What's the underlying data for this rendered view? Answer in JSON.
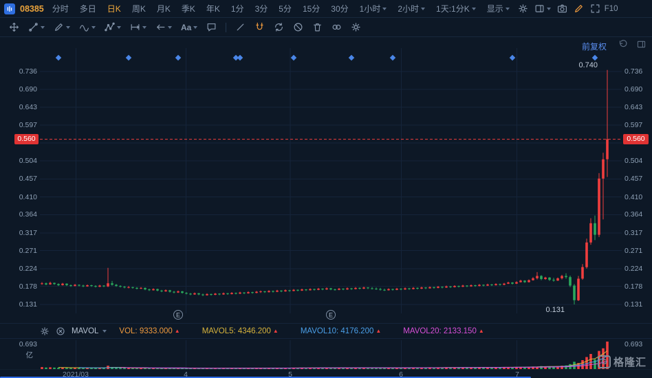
{
  "header": {
    "symbol": "08385",
    "selected": "日K",
    "f10": "F10",
    "menu": [
      {
        "label": "分时"
      },
      {
        "label": "多日"
      },
      {
        "label": "日K"
      },
      {
        "label": "周K"
      },
      {
        "label": "月K"
      },
      {
        "label": "季K"
      },
      {
        "label": "年K"
      },
      {
        "label": "1分"
      },
      {
        "label": "3分"
      },
      {
        "label": "5分"
      },
      {
        "label": "15分"
      },
      {
        "label": "30分"
      },
      {
        "label": "1小时",
        "caret": true
      },
      {
        "label": "2小时",
        "caret": true
      },
      {
        "label": "1天:1分K",
        "caret": true
      },
      {
        "label": "显示",
        "caret": true
      }
    ],
    "icons": [
      {
        "name": "chart-settings-icon",
        "icon": "gear"
      },
      {
        "name": "layout-select-icon",
        "icon": "layout",
        "caret": true
      },
      {
        "name": "screenshot-icon",
        "icon": "camera"
      },
      {
        "name": "annotate-pencil-icon",
        "icon": "pencil",
        "color": "#f09a3d"
      },
      {
        "name": "fullscreen-icon",
        "icon": "expand"
      }
    ]
  },
  "drawbar": {
    "tools": [
      {
        "name": "move-tool",
        "icon": "move"
      },
      {
        "name": "trendline-tool",
        "icon": "trend",
        "caret": true
      },
      {
        "name": "pen-tool",
        "icon": "pen",
        "caret": true
      },
      {
        "name": "wave-tool",
        "icon": "wave",
        "caret": true
      },
      {
        "name": "pattern-tool",
        "icon": "pattern",
        "caret": true
      },
      {
        "name": "measure-tool",
        "icon": "measure",
        "caret": true
      },
      {
        "name": "arrow-tool",
        "icon": "arrow",
        "caret": true
      },
      {
        "name": "text-tool",
        "icon": "text",
        "caret": true
      },
      {
        "name": "comment-tool",
        "icon": "comment"
      },
      {
        "name": "divider",
        "icon": "sep"
      },
      {
        "name": "ruler-tool",
        "icon": "slash"
      },
      {
        "name": "magnet-tool",
        "icon": "magnet",
        "color": "#f09a3d"
      },
      {
        "name": "sync-drawings-tool",
        "icon": "sync"
      },
      {
        "name": "hide-drawings-tool",
        "icon": "ban"
      },
      {
        "name": "delete-drawings-tool",
        "icon": "trash"
      },
      {
        "name": "link-tool",
        "icon": "rings"
      },
      {
        "name": "drawbar-settings",
        "icon": "gear"
      }
    ]
  },
  "chart": {
    "adjust_label": "前复权",
    "current_price": "0.560",
    "high_annotation": "0.740",
    "low_annotation": "0.131",
    "colors": {
      "up": "#f03e3e",
      "down": "#2aa85c",
      "diamond": "#4a86e8",
      "grid": "#15243a",
      "axis_text": "#8ea0b5",
      "annotation": "#c2cddb"
    }
  },
  "indicator": {
    "name": "MAVOL",
    "items": [
      {
        "label": "VOL: 9333.000",
        "color": "#f09a3d"
      },
      {
        "label": "MAVOL5: 4346.200",
        "color": "#d8b43c"
      },
      {
        "label": "MAVOL10: 4176.200",
        "color": "#4a9fe8"
      },
      {
        "label": "MAVOL20: 2133.150",
        "color": "#d84fd8"
      }
    ]
  },
  "volume_pane": {
    "scale_label": "0.693",
    "unit": "亿"
  },
  "footer": {
    "watermark": "格隆汇"
  },
  "chart_data": {
    "type": "candlestick",
    "symbol": "08385",
    "current_price": 0.56,
    "period_high": 0.74,
    "period_low": 0.131,
    "high_index": 137,
    "low_index": 129,
    "y_ticks": [
      "0.736",
      "0.690",
      "0.643",
      "0.597",
      "0.504",
      "0.457",
      "0.410",
      "0.364",
      "0.317",
      "0.271",
      "0.224",
      "0.178",
      "0.131"
    ],
    "hidden_tick": 0.55,
    "x_ticks": [
      {
        "label": "2021/03",
        "f": 0.062
      },
      {
        "label": "4",
        "f": 0.251
      },
      {
        "label": "5",
        "f": 0.43
      },
      {
        "label": "6",
        "f": 0.621
      },
      {
        "label": "7",
        "f": 0.82
      }
    ],
    "event_diamond_indices": [
      4,
      21,
      33,
      47,
      48,
      61,
      75,
      85,
      114,
      134
    ],
    "earnings_marker_indices": [
      33,
      70
    ],
    "event_marker_label": "E",
    "volume_max": 69.3,
    "volume_unit": "亿",
    "candles": [
      [
        0.184,
        0.189,
        0.182,
        0.186
      ],
      [
        0.186,
        0.188,
        0.181,
        0.183
      ],
      [
        0.183,
        0.19,
        0.182,
        0.187
      ],
      [
        0.187,
        0.188,
        0.182,
        0.184
      ],
      [
        0.184,
        0.186,
        0.179,
        0.181
      ],
      [
        0.181,
        0.187,
        0.18,
        0.185
      ],
      [
        0.185,
        0.186,
        0.179,
        0.181
      ],
      [
        0.181,
        0.183,
        0.177,
        0.179
      ],
      [
        0.179,
        0.184,
        0.178,
        0.182
      ],
      [
        0.182,
        0.183,
        0.178,
        0.18
      ],
      [
        0.18,
        0.182,
        0.176,
        0.178
      ],
      [
        0.178,
        0.183,
        0.177,
        0.181
      ],
      [
        0.181,
        0.182,
        0.177,
        0.179
      ],
      [
        0.179,
        0.181,
        0.175,
        0.177
      ],
      [
        0.177,
        0.182,
        0.176,
        0.18
      ],
      [
        0.18,
        0.181,
        0.176,
        0.178
      ],
      [
        0.178,
        0.226,
        0.176,
        0.186
      ],
      [
        0.186,
        0.192,
        0.18,
        0.182
      ],
      [
        0.182,
        0.184,
        0.177,
        0.179
      ],
      [
        0.179,
        0.181,
        0.175,
        0.177
      ],
      [
        0.177,
        0.179,
        0.173,
        0.175
      ],
      [
        0.175,
        0.179,
        0.173,
        0.176
      ],
      [
        0.176,
        0.177,
        0.172,
        0.174
      ],
      [
        0.174,
        0.176,
        0.17,
        0.172
      ],
      [
        0.172,
        0.176,
        0.171,
        0.174
      ],
      [
        0.174,
        0.175,
        0.168,
        0.17
      ],
      [
        0.17,
        0.172,
        0.166,
        0.168
      ],
      [
        0.168,
        0.173,
        0.167,
        0.171
      ],
      [
        0.171,
        0.172,
        0.165,
        0.167
      ],
      [
        0.167,
        0.169,
        0.163,
        0.165
      ],
      [
        0.165,
        0.17,
        0.164,
        0.168
      ],
      [
        0.168,
        0.169,
        0.162,
        0.164
      ],
      [
        0.164,
        0.166,
        0.16,
        0.162
      ],
      [
        0.162,
        0.167,
        0.161,
        0.165
      ],
      [
        0.165,
        0.166,
        0.159,
        0.161
      ],
      [
        0.161,
        0.163,
        0.157,
        0.159
      ],
      [
        0.159,
        0.161,
        0.155,
        0.157
      ],
      [
        0.157,
        0.162,
        0.156,
        0.16
      ],
      [
        0.16,
        0.161,
        0.155,
        0.157
      ],
      [
        0.157,
        0.159,
        0.153,
        0.155
      ],
      [
        0.155,
        0.16,
        0.154,
        0.158
      ],
      [
        0.158,
        0.159,
        0.154,
        0.156
      ],
      [
        0.156,
        0.161,
        0.155,
        0.159
      ],
      [
        0.159,
        0.16,
        0.155,
        0.157
      ],
      [
        0.157,
        0.162,
        0.156,
        0.16
      ],
      [
        0.16,
        0.161,
        0.156,
        0.158
      ],
      [
        0.158,
        0.163,
        0.157,
        0.161
      ],
      [
        0.161,
        0.162,
        0.157,
        0.159
      ],
      [
        0.159,
        0.164,
        0.158,
        0.162
      ],
      [
        0.162,
        0.163,
        0.158,
        0.16
      ],
      [
        0.16,
        0.165,
        0.159,
        0.163
      ],
      [
        0.163,
        0.164,
        0.159,
        0.161
      ],
      [
        0.161,
        0.166,
        0.16,
        0.164
      ],
      [
        0.164,
        0.167,
        0.161,
        0.165
      ],
      [
        0.165,
        0.166,
        0.161,
        0.163
      ],
      [
        0.163,
        0.168,
        0.162,
        0.166
      ],
      [
        0.166,
        0.167,
        0.162,
        0.164
      ],
      [
        0.164,
        0.169,
        0.163,
        0.167
      ],
      [
        0.167,
        0.168,
        0.163,
        0.165
      ],
      [
        0.165,
        0.17,
        0.164,
        0.168
      ],
      [
        0.168,
        0.169,
        0.164,
        0.166
      ],
      [
        0.166,
        0.171,
        0.165,
        0.169
      ],
      [
        0.169,
        0.17,
        0.165,
        0.167
      ],
      [
        0.167,
        0.172,
        0.166,
        0.17
      ],
      [
        0.17,
        0.171,
        0.166,
        0.168
      ],
      [
        0.168,
        0.173,
        0.167,
        0.171
      ],
      [
        0.171,
        0.172,
        0.167,
        0.169
      ],
      [
        0.169,
        0.174,
        0.168,
        0.172
      ],
      [
        0.172,
        0.173,
        0.168,
        0.17
      ],
      [
        0.17,
        0.175,
        0.169,
        0.173
      ],
      [
        0.173,
        0.174,
        0.168,
        0.17
      ],
      [
        0.17,
        0.172,
        0.167,
        0.169
      ],
      [
        0.169,
        0.174,
        0.168,
        0.172
      ],
      [
        0.172,
        0.173,
        0.168,
        0.17
      ],
      [
        0.17,
        0.175,
        0.169,
        0.173
      ],
      [
        0.173,
        0.174,
        0.169,
        0.171
      ],
      [
        0.171,
        0.176,
        0.17,
        0.174
      ],
      [
        0.174,
        0.175,
        0.17,
        0.172
      ],
      [
        0.172,
        0.177,
        0.171,
        0.175
      ],
      [
        0.175,
        0.176,
        0.171,
        0.173
      ],
      [
        0.173,
        0.176,
        0.17,
        0.172
      ],
      [
        0.172,
        0.175,
        0.169,
        0.171
      ],
      [
        0.171,
        0.174,
        0.167,
        0.169
      ],
      [
        0.169,
        0.172,
        0.166,
        0.168
      ],
      [
        0.168,
        0.173,
        0.167,
        0.171
      ],
      [
        0.171,
        0.172,
        0.167,
        0.169
      ],
      [
        0.169,
        0.174,
        0.168,
        0.172
      ],
      [
        0.172,
        0.173,
        0.168,
        0.17
      ],
      [
        0.17,
        0.175,
        0.169,
        0.173
      ],
      [
        0.173,
        0.174,
        0.169,
        0.171
      ],
      [
        0.171,
        0.176,
        0.17,
        0.174
      ],
      [
        0.174,
        0.175,
        0.17,
        0.172
      ],
      [
        0.172,
        0.177,
        0.171,
        0.175
      ],
      [
        0.175,
        0.176,
        0.171,
        0.173
      ],
      [
        0.173,
        0.178,
        0.172,
        0.176
      ],
      [
        0.176,
        0.177,
        0.172,
        0.174
      ],
      [
        0.174,
        0.179,
        0.173,
        0.177
      ],
      [
        0.177,
        0.178,
        0.173,
        0.175
      ],
      [
        0.175,
        0.18,
        0.174,
        0.178
      ],
      [
        0.178,
        0.179,
        0.174,
        0.176
      ],
      [
        0.176,
        0.181,
        0.175,
        0.179
      ],
      [
        0.179,
        0.18,
        0.175,
        0.177
      ],
      [
        0.177,
        0.182,
        0.176,
        0.18
      ],
      [
        0.18,
        0.181,
        0.176,
        0.178
      ],
      [
        0.178,
        0.183,
        0.177,
        0.181
      ],
      [
        0.181,
        0.182,
        0.177,
        0.179
      ],
      [
        0.179,
        0.184,
        0.178,
        0.182
      ],
      [
        0.182,
        0.183,
        0.178,
        0.18
      ],
      [
        0.18,
        0.185,
        0.179,
        0.183
      ],
      [
        0.183,
        0.184,
        0.179,
        0.181
      ],
      [
        0.181,
        0.186,
        0.18,
        0.184
      ],
      [
        0.184,
        0.185,
        0.18,
        0.182
      ],
      [
        0.182,
        0.187,
        0.181,
        0.185
      ],
      [
        0.185,
        0.19,
        0.184,
        0.188
      ],
      [
        0.188,
        0.189,
        0.183,
        0.185
      ],
      [
        0.185,
        0.191,
        0.184,
        0.189
      ],
      [
        0.189,
        0.195,
        0.188,
        0.193
      ],
      [
        0.193,
        0.194,
        0.187,
        0.189
      ],
      [
        0.189,
        0.196,
        0.188,
        0.194
      ],
      [
        0.194,
        0.202,
        0.193,
        0.199
      ],
      [
        0.199,
        0.215,
        0.196,
        0.205
      ],
      [
        0.205,
        0.207,
        0.194,
        0.197
      ],
      [
        0.197,
        0.203,
        0.195,
        0.201
      ],
      [
        0.201,
        0.202,
        0.192,
        0.195
      ],
      [
        0.195,
        0.2,
        0.19,
        0.193
      ],
      [
        0.193,
        0.201,
        0.192,
        0.199
      ],
      [
        0.199,
        0.208,
        0.196,
        0.205
      ],
      [
        0.205,
        0.212,
        0.198,
        0.202
      ],
      [
        0.202,
        0.206,
        0.176,
        0.18
      ],
      [
        0.18,
        0.184,
        0.131,
        0.142
      ],
      [
        0.142,
        0.205,
        0.14,
        0.198
      ],
      [
        0.198,
        0.236,
        0.195,
        0.228
      ],
      [
        0.228,
        0.302,
        0.224,
        0.292
      ],
      [
        0.292,
        0.355,
        0.286,
        0.342
      ],
      [
        0.342,
        0.362,
        0.298,
        0.312
      ],
      [
        0.312,
        0.472,
        0.306,
        0.458
      ],
      [
        0.458,
        0.525,
        0.352,
        0.508
      ],
      [
        0.508,
        0.74,
        0.462,
        0.56
      ]
    ],
    "volumes": [
      5.0,
      4.0,
      4.5,
      3.8,
      3.5,
      4.0,
      3.2,
      3.0,
      3.6,
      3.1,
      2.8,
      3.3,
      2.9,
      2.7,
      3.1,
      2.8,
      8.5,
      4.2,
      3.1,
      2.8,
      2.6,
      2.9,
      2.7,
      2.5,
      2.8,
      2.4,
      2.2,
      2.6,
      2.3,
      2.1,
      2.4,
      2.2,
      2.0,
      2.3,
      2.1,
      1.9,
      1.8,
      2.1,
      1.9,
      1.8,
      2.0,
      1.9,
      2.1,
      1.9,
      2.2,
      2.0,
      2.3,
      2.1,
      2.4,
      2.2,
      2.5,
      2.3,
      2.4,
      2.6,
      2.3,
      2.7,
      2.4,
      2.8,
      2.5,
      2.9,
      2.6,
      3.0,
      2.7,
      3.1,
      2.8,
      3.2,
      2.9,
      3.3,
      3.0,
      3.4,
      3.1,
      2.9,
      3.3,
      3.0,
      3.4,
      3.1,
      3.5,
      3.2,
      3.6,
      3.3,
      3.1,
      3.0,
      3.1,
      2.9,
      3.3,
      3.0,
      3.4,
      3.1,
      3.5,
      3.2,
      3.6,
      3.3,
      3.7,
      3.4,
      3.8,
      3.5,
      3.9,
      3.6,
      4.0,
      3.7,
      4.1,
      3.8,
      4.2,
      3.9,
      4.3,
      4.0,
      4.4,
      4.1,
      4.5,
      4.2,
      4.6,
      4.3,
      4.5,
      4.8,
      4.4,
      5.0,
      5.4,
      4.9,
      5.6,
      6.2,
      5.8,
      7.5,
      6.4,
      6.8,
      6.1,
      6.6,
      8.5,
      9.2,
      12.5,
      18.4,
      15.2,
      22.6,
      30.4,
      38.2,
      24.5,
      45.8,
      52.3,
      69.3
    ],
    "x_labels": [
      "2021/03",
      "4",
      "5",
      "6",
      "7"
    ]
  }
}
